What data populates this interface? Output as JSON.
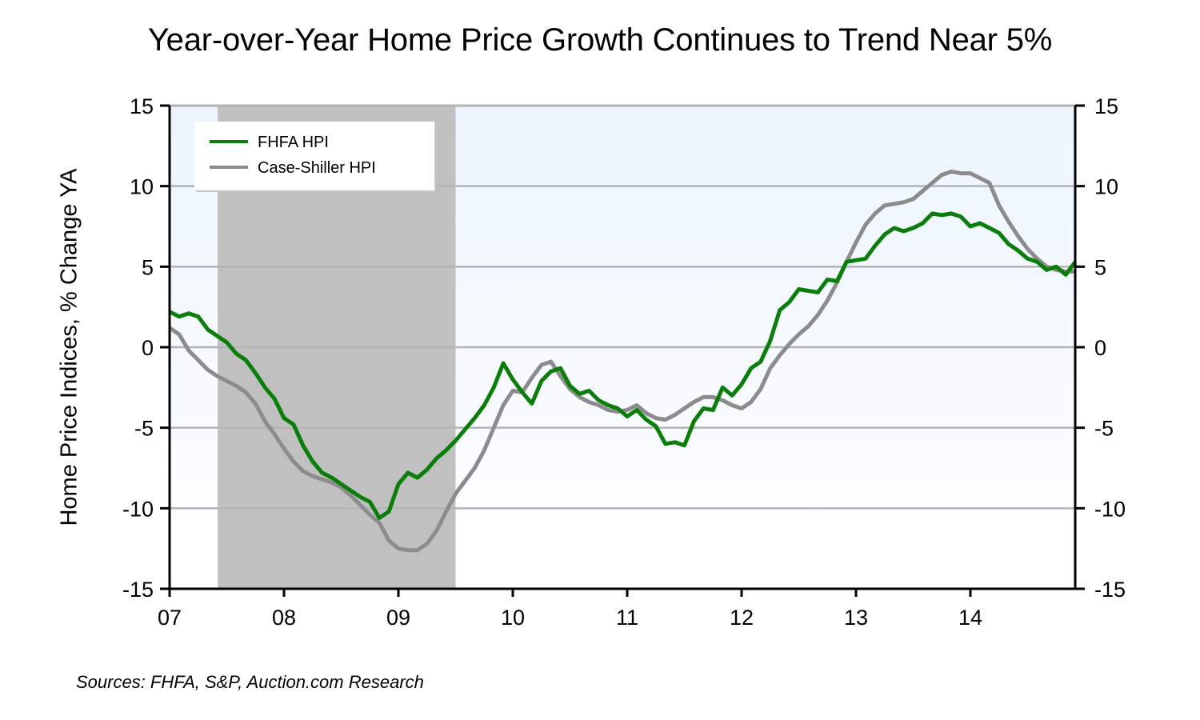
{
  "chart_data": {
    "type": "line",
    "title": "Year-over-Year Home Price Growth Continues to Trend Near 5%",
    "xlabel": "",
    "ylabel": "Home Price Indices, % Change YA",
    "ylabel_right": "",
    "ylim": [
      -15,
      15
    ],
    "yticks": [
      15,
      10,
      5,
      0,
      -5,
      -10,
      -15
    ],
    "ytick_labels": [
      "15",
      "10",
      "5",
      "0",
      "-5",
      "-10",
      "-15"
    ],
    "xlim": [
      2007.0,
      2014.92
    ],
    "xticks": [
      2007,
      2008,
      2009,
      2010,
      2011,
      2012,
      2013,
      2014
    ],
    "xtick_labels": [
      "07",
      "08",
      "09",
      "10",
      "11",
      "12",
      "13",
      "14"
    ],
    "grid": true,
    "legend_position": "top-left",
    "frequency": "monthly",
    "start": "2007-01",
    "shaded_regions": [
      {
        "label": "recession",
        "start": 2007.42,
        "end": 2009.5
      }
    ],
    "series": [
      {
        "name": "FHFA HPI",
        "color": "#0a7d0a",
        "values": [
          2.2,
          1.9,
          2.1,
          1.9,
          1.1,
          0.7,
          0.3,
          -0.4,
          -0.8,
          -1.6,
          -2.5,
          -3.2,
          -4.4,
          -4.8,
          -6.1,
          -7.1,
          -7.8,
          -8.1,
          -8.5,
          -8.9,
          -9.3,
          -9.6,
          -10.6,
          -10.2,
          -8.5,
          -7.8,
          -8.1,
          -7.6,
          -6.9,
          -6.4,
          -5.8,
          -5.1,
          -4.4,
          -3.6,
          -2.5,
          -1.0,
          -2.0,
          -2.8,
          -3.5,
          -2.1,
          -1.5,
          -1.3,
          -2.4,
          -2.9,
          -2.7,
          -3.3,
          -3.6,
          -3.8,
          -4.3,
          -3.9,
          -4.5,
          -4.9,
          -6.0,
          -5.9,
          -6.1,
          -4.6,
          -3.8,
          -3.9,
          -2.5,
          -3.0,
          -2.3,
          -1.3,
          -0.9,
          0.4,
          2.3,
          2.8,
          3.6,
          3.5,
          3.4,
          4.2,
          4.1,
          5.3,
          5.4,
          5.5,
          6.3,
          7.0,
          7.4,
          7.2,
          7.4,
          7.7,
          8.3,
          8.2,
          8.3,
          8.1,
          7.5,
          7.7,
          7.4,
          7.1,
          6.4,
          6.0,
          5.5,
          5.3,
          4.8,
          5.0,
          4.5,
          5.3
        ]
      },
      {
        "name": "Case-Shiller HPI",
        "color": "#8c8c8c",
        "values": [
          1.2,
          0.8,
          -0.2,
          -0.8,
          -1.4,
          -1.8,
          -2.1,
          -2.4,
          -2.8,
          -3.5,
          -4.6,
          -5.4,
          -6.3,
          -7.1,
          -7.7,
          -8.0,
          -8.2,
          -8.4,
          -8.7,
          -9.2,
          -9.8,
          -10.4,
          -10.9,
          -12.0,
          -12.5,
          -12.6,
          -12.6,
          -12.2,
          -11.4,
          -10.2,
          -9.1,
          -8.3,
          -7.5,
          -6.4,
          -5.0,
          -3.6,
          -2.7,
          -2.8,
          -1.9,
          -1.1,
          -0.9,
          -1.8,
          -2.6,
          -3.1,
          -3.4,
          -3.6,
          -3.9,
          -4.0,
          -3.9,
          -3.6,
          -4.1,
          -4.4,
          -4.5,
          -4.2,
          -3.8,
          -3.4,
          -3.1,
          -3.1,
          -3.3,
          -3.6,
          -3.8,
          -3.4,
          -2.6,
          -1.3,
          -0.5,
          0.2,
          0.8,
          1.3,
          2.0,
          2.9,
          4.0,
          5.3,
          6.5,
          7.6,
          8.3,
          8.8,
          8.9,
          9.0,
          9.2,
          9.7,
          10.2,
          10.7,
          10.9,
          10.8,
          10.8,
          10.5,
          10.2,
          8.8,
          7.8,
          6.9,
          6.1,
          5.5,
          5.0,
          4.8,
          4.7,
          4.7
        ]
      }
    ],
    "source": "Sources: FHFA, S&P, Auction.com Research"
  },
  "colors": {
    "plot_bg_top": "#ecf5fe",
    "plot_bg_bottom": "#ffffff",
    "recession_shade": "#c0c0c0",
    "gridline": "#b4b4b4",
    "axis": "#000000"
  }
}
